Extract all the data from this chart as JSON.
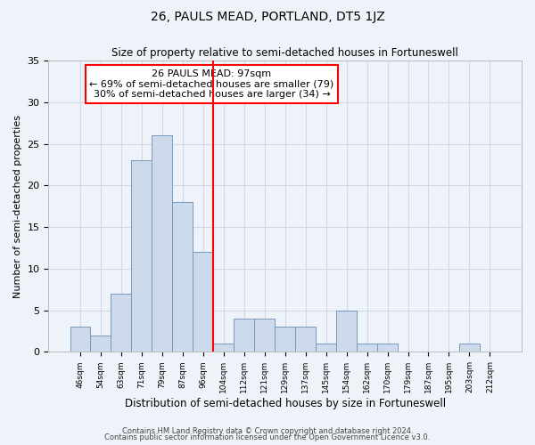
{
  "title": "26, PAULS MEAD, PORTLAND, DT5 1JZ",
  "subtitle": "Size of property relative to semi-detached houses in Fortuneswell",
  "xlabel": "Distribution of semi-detached houses by size in Fortuneswell",
  "ylabel": "Number of semi-detached properties",
  "bar_labels": [
    "46sqm",
    "54sqm",
    "63sqm",
    "71sqm",
    "79sqm",
    "87sqm",
    "96sqm",
    "104sqm",
    "112sqm",
    "121sqm",
    "129sqm",
    "137sqm",
    "145sqm",
    "154sqm",
    "162sqm",
    "170sqm",
    "179sqm",
    "187sqm",
    "195sqm",
    "203sqm",
    "212sqm"
  ],
  "bar_values": [
    3,
    2,
    7,
    23,
    26,
    18,
    12,
    1,
    4,
    4,
    3,
    3,
    1,
    5,
    1,
    1,
    0,
    0,
    0,
    1,
    0
  ],
  "bar_color": "#ccdaeb",
  "bar_edge_color": "#7799bb",
  "grid_color": "#d0d8e8",
  "background_color": "#eef3fa",
  "vline_bin_index": 6,
  "vline_color": "red",
  "annotation_text": "26 PAULS MEAD: 97sqm\n← 69% of semi-detached houses are smaller (79)\n30% of semi-detached houses are larger (34) →",
  "annotation_box_color": "white",
  "annotation_box_edge": "red",
  "ylim": [
    0,
    35
  ],
  "yticks": [
    0,
    5,
    10,
    15,
    20,
    25,
    30,
    35
  ],
  "footer1": "Contains HM Land Registry data © Crown copyright and database right 2024.",
  "footer2": "Contains public sector information licensed under the Open Government Licence v3.0."
}
